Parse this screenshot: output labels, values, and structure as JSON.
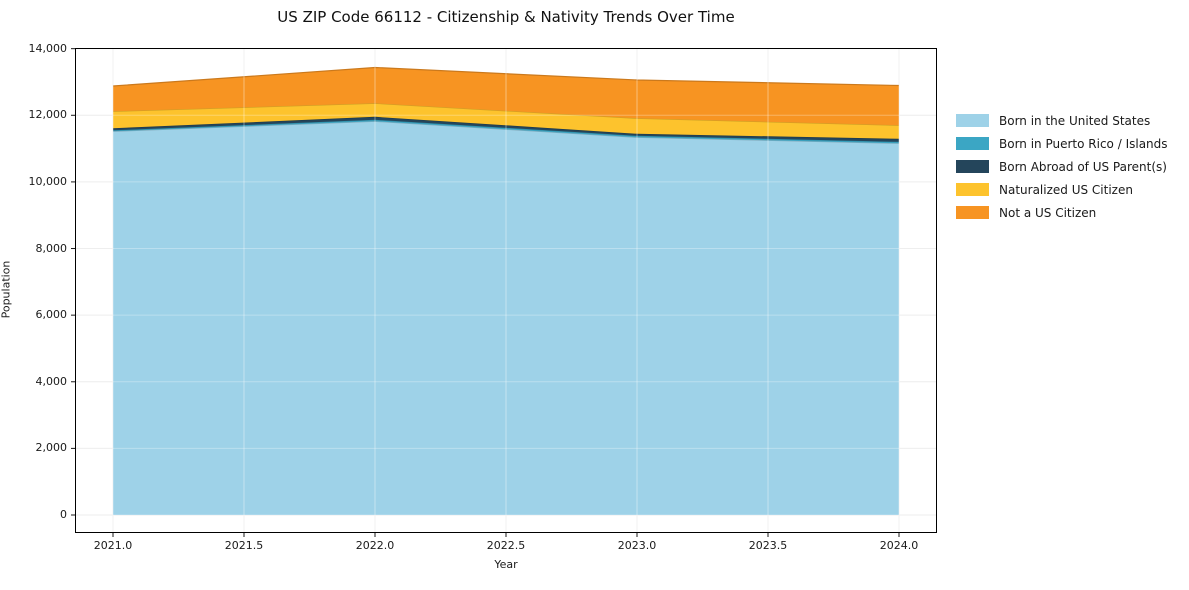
{
  "title": "US ZIP Code 66112 - Citizenship & Nativity Trends Over Time",
  "chart_data": {
    "type": "area",
    "stacked": true,
    "title": "US ZIP Code 66112 - Citizenship & Nativity Trends Over Time",
    "xlabel": "Year",
    "ylabel": "Population",
    "x": [
      2021,
      2022,
      2023,
      2024
    ],
    "series": [
      {
        "name": "Born in the United States",
        "color": "#9ed2e8",
        "values": [
          11520,
          11820,
          11340,
          11160
        ]
      },
      {
        "name": "Born in Puerto Rico / Islands",
        "color": "#3ba6c4",
        "values": [
          30,
          45,
          45,
          45
        ]
      },
      {
        "name": "Born Abroad of US Parent(s)",
        "color": "#24455b",
        "values": [
          60,
          90,
          60,
          90
        ]
      },
      {
        "name": "Naturalized US Citizen",
        "color": "#fdc32d",
        "values": [
          510,
          405,
          465,
          405
        ]
      },
      {
        "name": "Not a US Citizen",
        "color": "#f79422",
        "values": [
          760,
          1075,
          1150,
          1195
        ]
      }
    ],
    "xticks": [
      "2021.0",
      "2021.5",
      "2022.0",
      "2022.5",
      "2023.0",
      "2023.5",
      "2024.0"
    ],
    "yticks": [
      "0",
      "2,000",
      "4,000",
      "6,000",
      "8,000",
      "10,000",
      "12,000",
      "14,000"
    ],
    "xlim": [
      2020.855,
      2024.145
    ],
    "ylim": [
      -540,
      14020
    ],
    "grid": true,
    "legend_position": "right",
    "colors": {
      "grid": "#e7e7e7",
      "spine": "#000000",
      "tick": "#1a1a1a"
    }
  }
}
